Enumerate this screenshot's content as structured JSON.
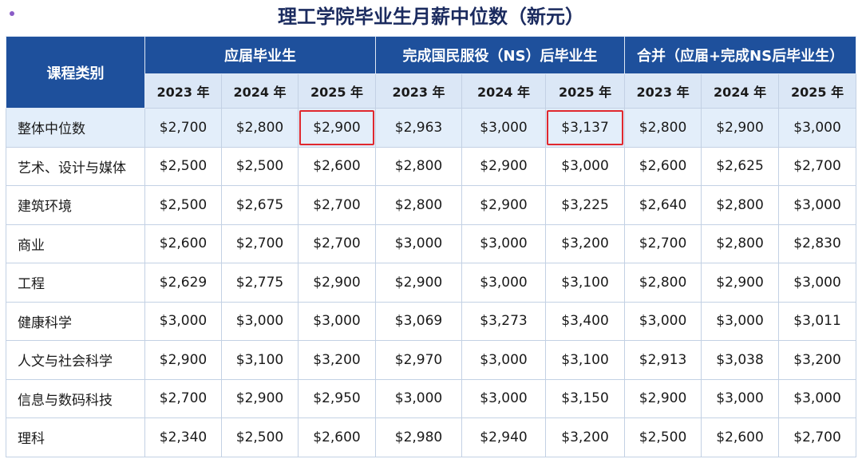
{
  "title": "理工学院毕业生月薪中位数（新元）",
  "table": {
    "header": {
      "row_label": "课程类别",
      "groups": [
        "应届毕业生",
        "完成国民服役（NS）后毕业生",
        "合并（应届+完成NS后毕业生）"
      ],
      "years": [
        "2023 年",
        "2024 年",
        "2025 年",
        "2023 年",
        "2024 年",
        "2025 年",
        "2023 年",
        "2024 年",
        "2025 年"
      ]
    },
    "rows": [
      [
        "整体中位数",
        "$2,700",
        "$2,800",
        "$2,900",
        "$2,963",
        "$3,000",
        "$3,137",
        "$2,800",
        "$2,900",
        "$3,000"
      ],
      [
        "艺术、设计与媒体",
        "$2,500",
        "$2,500",
        "$2,600",
        "$2,800",
        "$2,900",
        "$3,000",
        "$2,600",
        "$2,625",
        "$2,700"
      ],
      [
        "建筑环境",
        "$2,500",
        "$2,675",
        "$2,700",
        "$2,800",
        "$2,900",
        "$3,225",
        "$2,640",
        "$2,800",
        "$3,000"
      ],
      [
        "商业",
        "$2,600",
        "$2,700",
        "$2,700",
        "$3,000",
        "$3,000",
        "$3,200",
        "$2,700",
        "$2,800",
        "$2,830"
      ],
      [
        "工程",
        "$2,629",
        "$2,775",
        "$2,900",
        "$2,900",
        "$3,000",
        "$3,100",
        "$2,800",
        "$2,900",
        "$3,000"
      ],
      [
        "健康科学",
        "$3,000",
        "$3,000",
        "$3,000",
        "$3,069",
        "$3,273",
        "$3,400",
        "$3,000",
        "$3,000",
        "$3,011"
      ],
      [
        "人文与社会科学",
        "$2,900",
        "$3,100",
        "$3,200",
        "$2,970",
        "$3,000",
        "$3,100",
        "$2,913",
        "$3,038",
        "$3,200"
      ],
      [
        "信息与数码科技",
        "$2,700",
        "$2,900",
        "$2,950",
        "$3,000",
        "$3,000",
        "$3,150",
        "$2,900",
        "$3,000",
        "$3,000"
      ],
      [
        "理科",
        "$2,340",
        "$2,500",
        "$2,600",
        "$2,980",
        "$2,940",
        "$3,200",
        "$2,500",
        "$2,600",
        "$2,700"
      ]
    ]
  }
}
